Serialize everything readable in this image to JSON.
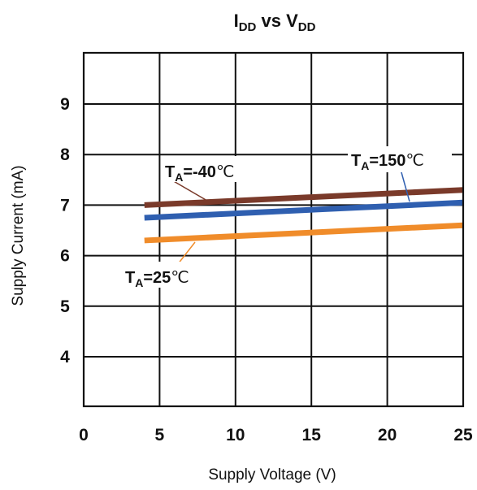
{
  "chart_data": {
    "type": "line",
    "title": {
      "main_a": "I",
      "sub_a": "DD",
      "mid": " vs V",
      "sub_b": "DD"
    },
    "xlabel": "Supply Voltage (V)",
    "ylabel": "Supply Current (mA)",
    "xlim": [
      0,
      25
    ],
    "ylim": [
      3,
      10
    ],
    "x_ticks": [
      "0",
      "5",
      "10",
      "15",
      "20",
      "25"
    ],
    "x_tick_values": [
      0,
      5,
      10,
      15,
      20,
      25
    ],
    "y_ticks": [
      "4",
      "5",
      "6",
      "7",
      "8",
      "9"
    ],
    "y_tick_values": [
      4,
      5,
      6,
      7,
      8,
      9
    ],
    "grid": true,
    "series": [
      {
        "name_main": "T",
        "name_sub": "A",
        "name_rest": "=-40",
        "name_unit": "℃",
        "color": "#7a3a2a",
        "x": [
          4,
          25
        ],
        "y": [
          7.0,
          7.3
        ]
      },
      {
        "name_main": "T",
        "name_sub": "A",
        "name_rest": "=150",
        "name_unit": "℃",
        "color": "#2f5fb0",
        "x": [
          4,
          25
        ],
        "y": [
          6.75,
          7.05
        ]
      },
      {
        "name_main": "T",
        "name_sub": "A",
        "name_rest": "=25",
        "name_unit": "℃",
        "color": "#f08c2a",
        "x": [
          4,
          25
        ],
        "y": [
          6.3,
          6.6
        ]
      }
    ]
  }
}
